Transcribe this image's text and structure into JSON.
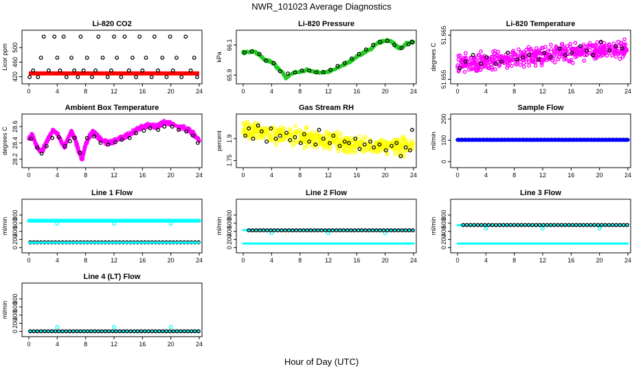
{
  "figure": {
    "title": "NWR_101023  Average Diagnostics",
    "xlabel": "Hour of Day (UTC)",
    "colors": {
      "black": "#000000",
      "red": "#ff0000",
      "green": "#22cc22",
      "magenta": "#ff00ff",
      "yellow": "#ffff00",
      "cyan": "#00ffff",
      "blue": "#0000ff",
      "axis": "#000000"
    }
  },
  "chart_data": [
    {
      "type": "scatter",
      "title": "Li-820 CO2",
      "ylabel": "Licor ppm",
      "xlim": [
        0,
        24
      ],
      "xticks": [
        0,
        4,
        8,
        12,
        16,
        20,
        24
      ],
      "ylim": [
        408,
        540
      ],
      "yticks": [
        420,
        460,
        500
      ],
      "series": [
        {
          "name": "reference",
          "color": "red",
          "marker": "dot",
          "x": [
            0,
            1,
            2,
            3,
            4,
            5,
            6,
            7,
            8,
            9,
            10,
            11,
            12,
            13,
            14,
            15,
            16,
            17,
            18,
            19,
            20,
            21,
            22,
            23,
            24
          ],
          "y": [
            429,
            429,
            429,
            429,
            429,
            429,
            429,
            429,
            429,
            429,
            429,
            429,
            429,
            429,
            429,
            429,
            429,
            429,
            429,
            429,
            429,
            429,
            429,
            429,
            429
          ]
        },
        {
          "name": "standards",
          "color": "black",
          "marker": "circle",
          "x": [
            0.1,
            0.6,
            1.3,
            1.7,
            2.1,
            2.8,
            3.6,
            4.0,
            4.4,
            4.9,
            5.3,
            6.0,
            6.4,
            6.9,
            7.3,
            7.7,
            8.2,
            8.9,
            9.4,
            9.8,
            10.4,
            11.1,
            11.6,
            12.0,
            12.4,
            13.0,
            13.5,
            14.1,
            14.6,
            15.1,
            15.6,
            16.0,
            16.5,
            17.3,
            17.7,
            18.2,
            18.8,
            19.4,
            19.9,
            20.3,
            20.8,
            21.5,
            22.1,
            22.8,
            23.3,
            23.7
          ],
          "y": [
            419,
            437,
            419,
            472,
            530,
            437,
            530,
            472,
            437,
            530,
            419,
            472,
            437,
            419,
            530,
            437,
            472,
            419,
            437,
            530,
            472,
            419,
            437,
            530,
            472,
            419,
            530,
            437,
            472,
            419,
            530,
            437,
            472,
            419,
            530,
            437,
            472,
            419,
            530,
            437,
            472,
            419,
            530,
            437,
            472,
            419
          ]
        }
      ]
    },
    {
      "type": "scatter",
      "title": "Li-820 Pressure",
      "ylabel": "kPa",
      "xlim": [
        0,
        24
      ],
      "xticks": [
        0,
        4,
        8,
        12,
        16,
        20,
        24
      ],
      "ylim": [
        65.86,
        66.18
      ],
      "yticks": [
        65.9,
        66.1
      ],
      "series": [
        {
          "name": "measurement",
          "color": "green",
          "marker": "line",
          "x": [
            0,
            1,
            1.5,
            2,
            3,
            4,
            5,
            5.5,
            6,
            7,
            8,
            9,
            10,
            11,
            12,
            13,
            14,
            15,
            16,
            17,
            18,
            19,
            19.8,
            20.5,
            21,
            21.5,
            22,
            22.5,
            23,
            24
          ],
          "y": [
            66.05,
            66.055,
            66.06,
            66.045,
            66.0,
            65.99,
            65.94,
            65.92,
            65.88,
            65.915,
            65.92,
            65.935,
            65.925,
            65.915,
            65.925,
            65.94,
            65.965,
            65.99,
            66.02,
            66.05,
            66.075,
            66.115,
            66.125,
            66.13,
            66.12,
            66.095,
            66.08,
            66.085,
            66.11,
            66.12
          ]
        },
        {
          "name": "standards",
          "color": "black",
          "marker": "circle",
          "x": [
            0.2,
            1.2,
            2.3,
            3.2,
            4.3,
            5.2,
            6.3,
            7.3,
            8.3,
            9.3,
            10.3,
            11.3,
            12.3,
            13.3,
            14.3,
            15.3,
            16.3,
            17.3,
            18.3,
            19.3,
            20.3,
            21.3,
            22.3,
            23.3,
            23.8
          ],
          "y": [
            66.05,
            66.057,
            66.04,
            65.995,
            65.98,
            65.925,
            65.91,
            65.917,
            65.93,
            65.93,
            65.918,
            65.92,
            65.935,
            65.96,
            65.98,
            66.01,
            66.04,
            66.07,
            66.1,
            66.12,
            66.128,
            66.1,
            66.08,
            66.105,
            66.12
          ]
        }
      ]
    },
    {
      "type": "scatter",
      "title": "Li-820 Temperature",
      "ylabel": "degrees C",
      "xlim": [
        0,
        24
      ],
      "xticks": [
        0,
        4,
        8,
        12,
        16,
        20,
        24
      ],
      "ylim": [
        51.6546,
        51.6655
      ],
      "yticks": [
        51.655,
        51.665
      ],
      "series": [
        {
          "name": "measurement",
          "color": "magenta",
          "marker": "circle-cloud",
          "trend_x": [
            0,
            4,
            8,
            12,
            16,
            20,
            24
          ],
          "trend_y": [
            51.6585,
            51.659,
            51.6595,
            51.6605,
            51.661,
            51.6615,
            51.662
          ]
        },
        {
          "name": "standards",
          "color": "black",
          "marker": "circle",
          "x": [
            0.3,
            1.1,
            2.2,
            3.3,
            4.1,
            5.4,
            6.2,
            7.1,
            8.4,
            9.2,
            10.1,
            11.4,
            12.2,
            13.1,
            14.4,
            15.2,
            16.1,
            17.3,
            18.2,
            19.1,
            20.2,
            21.4,
            22.3,
            23.2
          ],
          "y": [
            51.6575,
            51.659,
            51.6605,
            51.6585,
            51.66,
            51.6585,
            51.659,
            51.661,
            51.6595,
            51.66,
            51.6605,
            51.6595,
            51.661,
            51.66,
            51.662,
            51.6605,
            51.661,
            51.6625,
            51.6615,
            51.6605,
            51.6635,
            51.6615,
            51.6625,
            51.662
          ]
        }
      ]
    },
    {
      "type": "scatter",
      "title": "Ambient Box Temperature",
      "ylabel": "degrees C",
      "xlim": [
        0,
        24
      ],
      "xticks": [
        0,
        4,
        8,
        12,
        16,
        20,
        24
      ],
      "ylim": [
        28.13,
        28.72
      ],
      "yticks": [
        28.2,
        28.4,
        28.6
      ],
      "series": [
        {
          "name": "measurement",
          "color": "magenta",
          "marker": "thick-line",
          "x": [
            0,
            0.5,
            1,
            1.5,
            2,
            2.5,
            3,
            3.5,
            4,
            4.5,
            5,
            5.5,
            6,
            6.5,
            7,
            7.5,
            8,
            9,
            10,
            11,
            12,
            13,
            14,
            15,
            16,
            17,
            18,
            19,
            20,
            21,
            22,
            23,
            24
          ],
          "y": [
            28.45,
            28.5,
            28.38,
            28.3,
            28.32,
            28.42,
            28.5,
            28.55,
            28.52,
            28.42,
            28.35,
            28.45,
            28.55,
            28.45,
            28.3,
            28.2,
            28.38,
            28.55,
            28.45,
            28.4,
            28.42,
            28.46,
            28.5,
            28.55,
            28.6,
            28.62,
            28.6,
            28.65,
            28.64,
            28.6,
            28.58,
            28.53,
            28.43
          ]
        },
        {
          "name": "standards",
          "color": "black",
          "marker": "circle",
          "x": [
            0.3,
            1.2,
            1.8,
            2.5,
            3.3,
            4.2,
            5.1,
            5.8,
            6.4,
            7.2,
            8.2,
            9.2,
            10.1,
            11.2,
            12.2,
            13.1,
            14.2,
            15.1,
            16.2,
            17.1,
            18.2,
            19.1,
            20.2,
            21.1,
            22.2,
            23.1,
            23.8
          ],
          "y": [
            28.45,
            28.34,
            28.27,
            28.36,
            28.46,
            28.47,
            28.36,
            28.42,
            28.46,
            28.28,
            28.46,
            28.48,
            28.4,
            28.38,
            28.41,
            28.44,
            28.46,
            28.52,
            28.55,
            28.58,
            28.56,
            28.6,
            28.6,
            28.56,
            28.54,
            28.49,
            28.4
          ]
        }
      ]
    },
    {
      "type": "scatter",
      "title": "Gas Stream RH",
      "ylabel": "percent",
      "xlim": [
        0,
        24
      ],
      "xticks": [
        0,
        4,
        8,
        12,
        16,
        20,
        24
      ],
      "ylim": [
        1.72,
        2.05
      ],
      "yticks": [
        1.75,
        1.9
      ],
      "series": [
        {
          "name": "measurement",
          "color": "yellow",
          "marker": "circle-cloud",
          "trend_x": [
            0,
            4,
            8,
            12,
            16,
            20,
            24
          ],
          "trend_y": [
            1.96,
            1.935,
            1.91,
            1.885,
            1.86,
            1.85,
            1.855
          ]
        },
        {
          "name": "standards",
          "color": "black",
          "marker": "circle",
          "x": [
            0.3,
            0.8,
            1.4,
            2.1,
            2.6,
            3.3,
            3.9,
            4.6,
            5.2,
            6.1,
            6.6,
            7.3,
            8.1,
            8.6,
            9.3,
            10.2,
            10.7,
            11.3,
            12.2,
            12.7,
            13.6,
            14.3,
            14.9,
            15.8,
            16.4,
            17.1,
            17.9,
            18.4,
            19.2,
            20.1,
            20.9,
            21.6,
            22.2,
            22.9,
            23.5,
            23.8
          ],
          "y": [
            1.92,
            1.97,
            1.9,
            1.99,
            1.95,
            1.88,
            1.97,
            1.9,
            1.92,
            1.94,
            1.89,
            1.91,
            1.87,
            1.93,
            1.88,
            1.86,
            1.96,
            1.9,
            1.87,
            1.92,
            1.85,
            1.88,
            1.87,
            1.9,
            1.83,
            1.86,
            1.88,
            1.84,
            1.86,
            1.82,
            1.85,
            1.87,
            1.78,
            1.84,
            1.82,
            1.96
          ]
        }
      ]
    },
    {
      "type": "scatter",
      "title": "Sample Flow",
      "ylabel": "ml/min",
      "xlim": [
        0,
        24
      ],
      "xticks": [
        0,
        4,
        8,
        12,
        16,
        20,
        24
      ],
      "ylim": [
        -15,
        210
      ],
      "yticks": [
        0,
        100,
        200
      ],
      "series": [
        {
          "name": "standards",
          "color": "black",
          "marker": "circle",
          "x_range": [
            0.1,
            23.9
          ],
          "count": 48,
          "y_const": 103
        },
        {
          "name": "measurement",
          "color": "blue",
          "marker": "thick-line",
          "x": [
            0,
            24
          ],
          "y": [
            102,
            102
          ]
        }
      ]
    },
    {
      "type": "scatter",
      "title": "Line 1 Flow",
      "ylabel": "ml/min",
      "xlim": [
        0,
        24
      ],
      "xticks": [
        0,
        4,
        8,
        12,
        16,
        20,
        24
      ],
      "ylim": [
        -60,
        1120
      ],
      "yticks": [
        0,
        200,
        400,
        600,
        800
      ],
      "series": [
        {
          "name": "measurement",
          "color": "cyan",
          "marker": "thick-line",
          "x": [
            0,
            24
          ],
          "y": [
            660,
            660
          ]
        },
        {
          "name": "measurement-dips",
          "color": "cyan",
          "marker": "circle",
          "x": [
            4,
            12,
            20
          ],
          "y": [
            590,
            590,
            590
          ]
        },
        {
          "name": "standards",
          "color": "black",
          "marker": "circle",
          "x_range": [
            0.2,
            23.9
          ],
          "count": 48,
          "y_const": 130
        },
        {
          "name": "standards-low",
          "color": "cyan",
          "marker": "thin-line",
          "x": [
            0,
            24
          ],
          "y": [
            120,
            120
          ]
        }
      ]
    },
    {
      "type": "scatter",
      "title": "Line 2 Flow",
      "ylabel": "ml/min",
      "xlim": [
        0,
        24
      ],
      "xticks": [
        0,
        4,
        8,
        12,
        16,
        20,
        24
      ],
      "ylim": [
        -60,
        1120
      ],
      "yticks": [
        0,
        200,
        400,
        600,
        800
      ],
      "series": [
        {
          "name": "measurement",
          "color": "cyan",
          "marker": "thin-line",
          "x": [
            0,
            24
          ],
          "y": [
            100,
            100
          ]
        },
        {
          "name": "measurement-high",
          "color": "cyan",
          "marker": "thin-line",
          "x": [
            0,
            24
          ],
          "y": [
            430,
            430
          ]
        },
        {
          "name": "measurement-dips",
          "color": "cyan",
          "marker": "circle",
          "x": [
            4,
            12,
            20
          ],
          "y": [
            360,
            360,
            360
          ]
        },
        {
          "name": "standards",
          "color": "black",
          "marker": "circle",
          "x_range": [
            0.8,
            23.9
          ],
          "count": 46,
          "y_const": 425
        }
      ]
    },
    {
      "type": "scatter",
      "title": "Line 3 Flow",
      "ylabel": "ml/min",
      "xlim": [
        0,
        24
      ],
      "xticks": [
        0,
        4,
        8,
        12,
        16,
        20,
        24
      ],
      "ylim": [
        -60,
        1120
      ],
      "yticks": [
        0,
        200,
        400,
        600,
        800
      ],
      "series": [
        {
          "name": "measurement",
          "color": "cyan",
          "marker": "thin-line",
          "x": [
            0,
            24
          ],
          "y": [
            100,
            100
          ]
        },
        {
          "name": "measurement-high",
          "color": "cyan",
          "marker": "thin-line",
          "x": [
            0,
            24
          ],
          "y": [
            550,
            550
          ]
        },
        {
          "name": "measurement-dips",
          "color": "cyan",
          "marker": "circle",
          "x": [
            4,
            12,
            20
          ],
          "y": [
            470,
            470,
            470
          ]
        },
        {
          "name": "standards",
          "color": "black",
          "marker": "circle",
          "x_range": [
            0.8,
            23.9
          ],
          "count": 46,
          "y_const": 555
        }
      ]
    },
    {
      "type": "scatter",
      "title": "Line 4 (LT) Flow",
      "ylabel": "ml/min",
      "xlim": [
        0,
        24
      ],
      "xticks": [
        0,
        4,
        8,
        12,
        16,
        20,
        24
      ],
      "ylim": [
        -60,
        1120
      ],
      "yticks": [
        0,
        200,
        400,
        600,
        800
      ],
      "series": [
        {
          "name": "measurement",
          "color": "cyan",
          "marker": "thin-line",
          "x": [
            0,
            24
          ],
          "y": [
            5,
            5
          ]
        },
        {
          "name": "measurement-spikes",
          "color": "cyan",
          "marker": "circle",
          "x": [
            4,
            12,
            20
          ],
          "y": [
            110,
            110,
            110
          ]
        },
        {
          "name": "standards",
          "color": "black",
          "marker": "circle",
          "x_range": [
            0.2,
            23.9
          ],
          "count": 48,
          "y_const": 5
        }
      ]
    }
  ]
}
